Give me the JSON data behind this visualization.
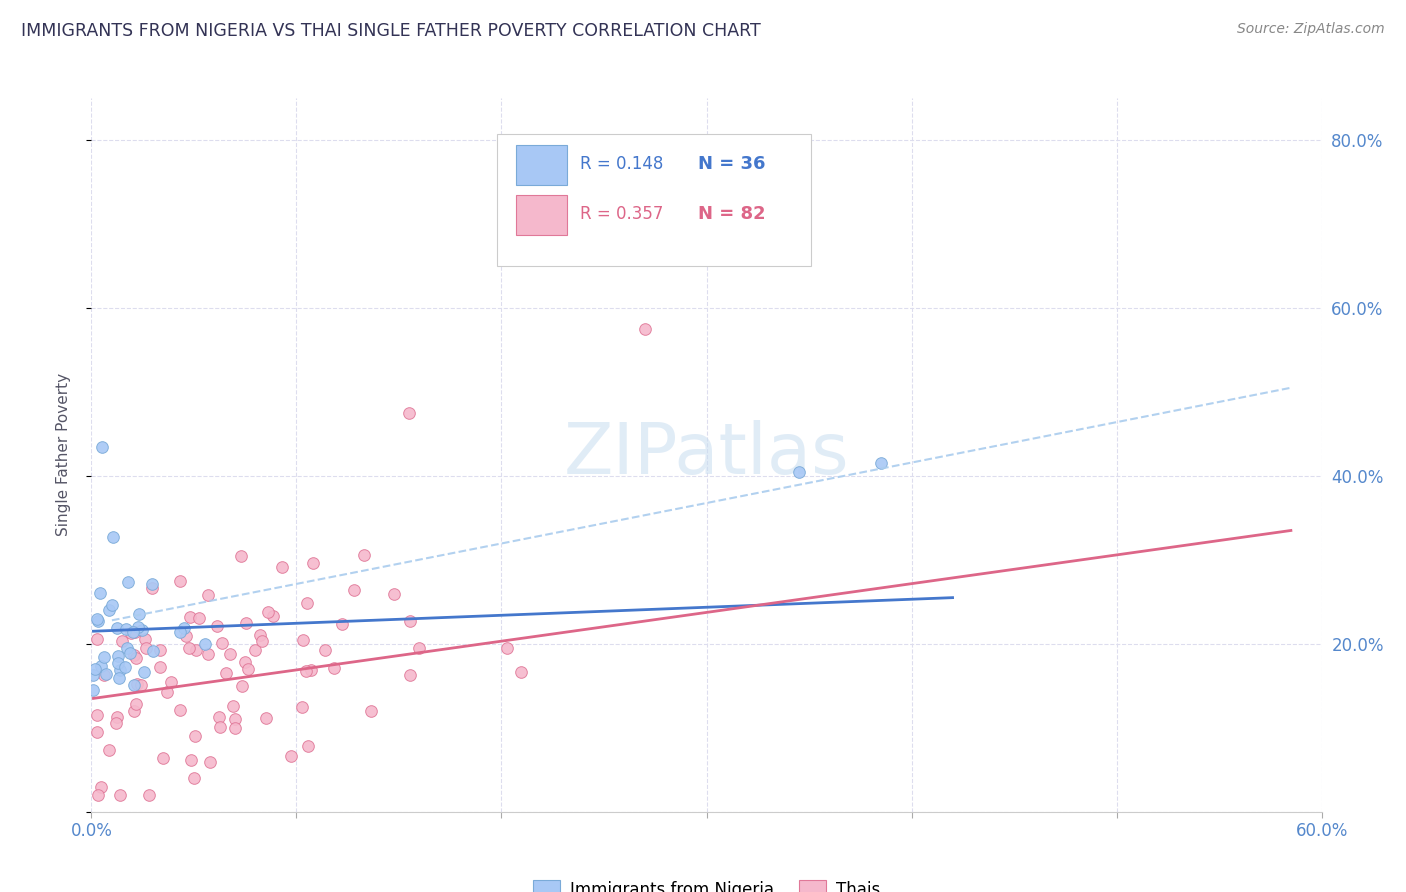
{
  "title": "IMMIGRANTS FROM NIGERIA VS THAI SINGLE FATHER POVERTY CORRELATION CHART",
  "source": "Source: ZipAtlas.com",
  "ylabel": "Single Father Poverty",
  "xlim": [
    0.0,
    0.6
  ],
  "ylim": [
    0.0,
    0.85
  ],
  "xtick_positions": [
    0.0,
    0.1,
    0.2,
    0.3,
    0.4,
    0.5,
    0.6
  ],
  "xticklabels": [
    "0.0%",
    "",
    "",
    "",
    "",
    "",
    "60.0%"
  ],
  "ytick_positions": [
    0.0,
    0.2,
    0.4,
    0.6,
    0.8
  ],
  "yticklabels_right": [
    "",
    "20.0%",
    "40.0%",
    "60.0%",
    "80.0%"
  ],
  "nigeria_color": "#a8c8f5",
  "nigeria_edge_color": "#7aaad8",
  "thai_color": "#f5b8cc",
  "thai_edge_color": "#e07898",
  "nigeria_trend_color": "#4477cc",
  "thai_trend_color": "#dd6688",
  "nigeria_dash_color": "#aaccee",
  "tick_label_color": "#5588cc",
  "title_color": "#333355",
  "source_color": "#888888",
  "legend_text_color_blue": "#4477cc",
  "legend_text_color_pink": "#dd6688",
  "watermark_color": "#c8ddf0",
  "grid_color": "#ddddee",
  "background_color": "#ffffff",
  "nigeria_seed": 10,
  "thai_seed": 20,
  "nigeria_n": 36,
  "thai_n": 82,
  "nigeria_r": 0.148,
  "thai_r": 0.357
}
